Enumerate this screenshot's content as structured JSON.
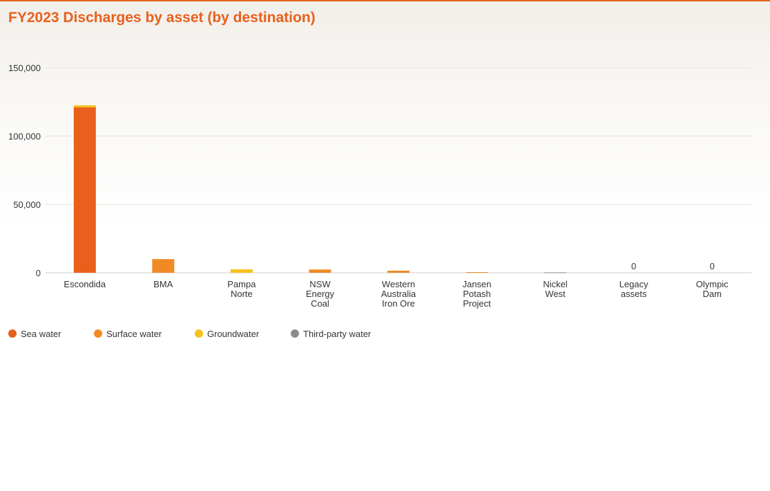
{
  "chart_data": {
    "type": "bar",
    "stacked": true,
    "title": "FY2023 Discharges by asset (by destination)",
    "xlabel": "",
    "ylabel": "",
    "ylim": [
      0,
      150000
    ],
    "yticks": [
      0,
      50000,
      100000,
      150000
    ],
    "ytick_labels": [
      "0",
      "50,000",
      "100,000",
      "150,000"
    ],
    "grid": true,
    "legend_position": "bottom-left",
    "categories": [
      [
        "Escondida"
      ],
      [
        "BMA"
      ],
      [
        "Pampa",
        "Norte"
      ],
      [
        "NSW",
        "Energy",
        "Coal"
      ],
      [
        "Western",
        "Australia",
        "Iron Ore"
      ],
      [
        "Jansen",
        "Potash",
        "Project"
      ],
      [
        "Nickel",
        "West"
      ],
      [
        "Legacy",
        "assets"
      ],
      [
        "Olympic",
        "Dam"
      ]
    ],
    "series": [
      {
        "name": "Sea water",
        "color": "#e8601c",
        "values": [
          121000,
          0,
          0,
          0,
          0,
          0,
          0,
          0,
          0
        ]
      },
      {
        "name": "Surface water",
        "color": "#f08a24",
        "values": [
          0,
          10000,
          0,
          2400,
          1500,
          500,
          0,
          0,
          0
        ]
      },
      {
        "name": "Groundwater",
        "color": "#f6c21c",
        "values": [
          1500,
          0,
          2500,
          0,
          0,
          0,
          0,
          0,
          0
        ]
      },
      {
        "name": "Third-party water",
        "color": "#8c8c8c",
        "values": [
          0,
          0,
          0,
          0,
          0,
          0,
          300,
          0,
          0
        ]
      }
    ],
    "data_labels": [
      "",
      "",
      "",
      "",
      "",
      "",
      "",
      "0",
      "0"
    ]
  }
}
